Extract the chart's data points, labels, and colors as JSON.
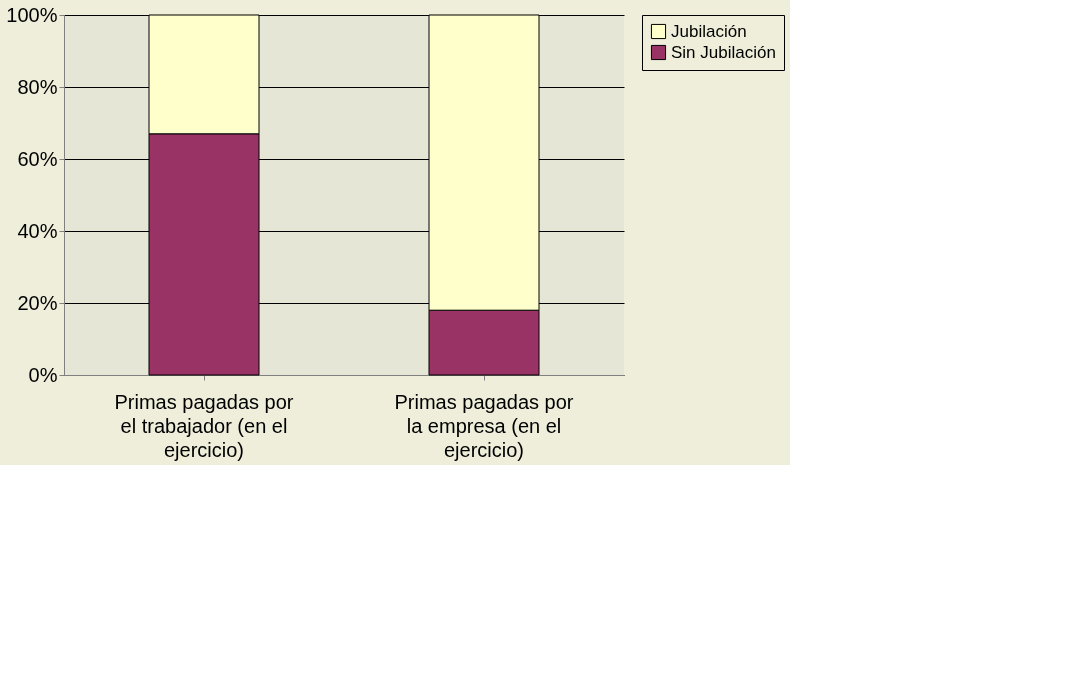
{
  "chart_data": {
    "type": "bar",
    "stacked": true,
    "categories": [
      "Primas pagadas por el trabajador (en el ejercicio)",
      "Primas pagadas por la empresa (en el ejercicio)"
    ],
    "series": [
      {
        "name": "Sin Jubilación",
        "color": "#993366",
        "values": [
          67,
          18
        ]
      },
      {
        "name": "Jubilación",
        "color": "#ffffcc",
        "values": [
          33,
          82
        ]
      }
    ],
    "ylim": [
      0,
      100
    ],
    "yticks": [
      {
        "value": 0,
        "label": "0%"
      },
      {
        "value": 20,
        "label": "20%"
      },
      {
        "value": 40,
        "label": "40%"
      },
      {
        "value": 60,
        "label": "60%"
      },
      {
        "value": 80,
        "label": "80%"
      },
      {
        "value": 100,
        "label": "100%"
      }
    ],
    "grid": "y",
    "legend": "right"
  }
}
